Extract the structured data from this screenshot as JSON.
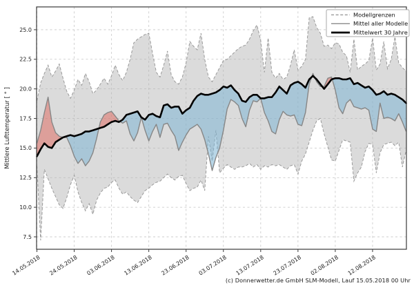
{
  "caption": "(c) Donnerwetter.de GmbH SLM-Modell, Lauf 15.05.2018 00 Uhr",
  "chart_data": {
    "type": "line",
    "title": "",
    "xlabel": "",
    "ylabel": "Mittlere Lufttemperatur [ ° ]",
    "grid": true,
    "legend_position": "upper right",
    "legend": [
      {
        "label": "Modellgrenzen",
        "style": "dashed",
        "color": "#a0a0a0"
      },
      {
        "label": "Mittel aller Modelle",
        "style": "solid",
        "color": "#8a8a8a"
      },
      {
        "label": "Mittelwert 30 Jahre",
        "style": "thick",
        "color": "#000000"
      }
    ],
    "x_tick_labels": [
      "14.05.2018",
      "24.05.2018",
      "03.06.2018",
      "13.06.2018",
      "23.06.2018",
      "03.07.2018",
      "13.07.2018",
      "23.07.2018",
      "02.08.2018",
      "12.08.2018"
    ],
    "x_tick_days": [
      0,
      10,
      20,
      30,
      40,
      50,
      60,
      70,
      80,
      90
    ],
    "y_ticks": [
      7.5,
      10.0,
      12.5,
      15.0,
      17.5,
      20.0,
      22.5,
      25.0
    ],
    "ylim": [
      6.45,
      26.9
    ],
    "days_total": 99,
    "colors": {
      "band_fill": "rgba(175,175,175,0.45)",
      "band_edge": "#999999",
      "above_fill": "rgba(222,110,100,0.55)",
      "below_fill": "rgba(125,180,212,0.55)",
      "mean_line": "#868686",
      "climate_line": "#000000",
      "grid_line": "#cccccc",
      "frame": "#3a3a3a",
      "tick_text": "#1a1a1a"
    },
    "series": [
      {
        "name": "model_upper_bound",
        "values": [
          19.0,
          20.5,
          21.3,
          22.0,
          21.0,
          21.5,
          22.1,
          20.9,
          19.8,
          19.2,
          19.9,
          20.8,
          20.3,
          21.3,
          20.6,
          19.6,
          19.9,
          20.4,
          20.9,
          20.4,
          21.1,
          22.0,
          21.2,
          20.7,
          21.4,
          22.5,
          23.9,
          24.2,
          24.4,
          24.6,
          24.7,
          23.0,
          21.4,
          21.0,
          22.0,
          23.2,
          21.2,
          20.6,
          20.4,
          21.0,
          22.2,
          24.0,
          23.6,
          23.3,
          24.7,
          22.5,
          21.0,
          20.6,
          21.2,
          21.8,
          22.4,
          22.5,
          22.8,
          23.1,
          23.4,
          23.6,
          23.7,
          24.2,
          24.9,
          25.4,
          24.1,
          21.4,
          24.3,
          21.4,
          20.9,
          21.3,
          20.8,
          21.0,
          22.0,
          23.3,
          21.6,
          21.9,
          22.5,
          26.0,
          26.1,
          25.2,
          24.7,
          23.6,
          23.7,
          23.4,
          23.9,
          23.8,
          23.1,
          22.8,
          21.4,
          24.2,
          21.6,
          21.9,
          22.1,
          22.4,
          24.3,
          21.6,
          22.1,
          24.0,
          21.7,
          22.5,
          24.4,
          22.2,
          21.8,
          21.5
        ]
      },
      {
        "name": "model_lower_bound",
        "values": [
          13.5,
          7.2,
          13.2,
          12.4,
          11.6,
          10.9,
          10.2,
          9.9,
          10.8,
          11.9,
          12.7,
          11.3,
          10.4,
          9.7,
          10.3,
          9.4,
          10.6,
          11.2,
          11.6,
          11.7,
          12.1,
          12.3,
          11.6,
          11.1,
          11.3,
          10.9,
          10.6,
          10.4,
          10.9,
          11.4,
          11.6,
          11.9,
          12.1,
          12.2,
          12.5,
          12.8,
          12.5,
          12.3,
          12.6,
          12.7,
          12.0,
          11.4,
          11.6,
          11.7,
          12.3,
          11.4,
          16.0,
          13.9,
          16.5,
          12.9,
          13.3,
          13.6,
          13.4,
          13.2,
          13.4,
          13.4,
          13.5,
          13.7,
          13.4,
          13.6,
          13.2,
          13.5,
          13.4,
          13.6,
          13.5,
          13.6,
          13.4,
          13.2,
          13.5,
          13.6,
          12.8,
          13.9,
          14.5,
          15.5,
          16.5,
          17.3,
          17.5,
          16.2,
          15.1,
          14.0,
          13.9,
          14.8,
          15.7,
          15.6,
          15.5,
          12.2,
          12.9,
          13.4,
          14.7,
          15.4,
          15.3,
          12.9,
          14.6,
          15.3,
          15.4,
          15.5,
          15.2,
          15.5,
          13.4,
          14.8
        ]
      },
      {
        "name": "model_mean",
        "values": [
          15.4,
          16.5,
          18.0,
          19.3,
          17.2,
          16.3,
          16.0,
          15.9,
          15.9,
          15.2,
          14.3,
          13.7,
          14.1,
          13.5,
          13.9,
          14.6,
          15.8,
          17.2,
          17.8,
          18.0,
          18.1,
          17.7,
          17.3,
          17.1,
          17.3,
          16.2,
          15.6,
          16.3,
          17.6,
          16.5,
          15.6,
          16.4,
          17.0,
          15.9,
          17.0,
          17.1,
          16.5,
          16.0,
          14.8,
          15.5,
          16.1,
          16.6,
          16.8,
          17.0,
          16.6,
          15.7,
          14.5,
          13.1,
          14.2,
          15.0,
          16.5,
          18.3,
          19.1,
          18.9,
          18.6,
          17.5,
          16.8,
          18.2,
          19.0,
          18.9,
          19.2,
          18.0,
          17.3,
          16.4,
          16.2,
          17.4,
          18.1,
          17.8,
          17.7,
          17.8,
          17.0,
          16.9,
          18.0,
          20.4,
          21.3,
          20.6,
          20.2,
          20.2,
          20.9,
          21.0,
          19.9,
          18.4,
          17.9,
          18.8,
          19.1,
          18.5,
          18.4,
          18.3,
          18.4,
          18.2,
          16.6,
          16.4,
          18.8,
          17.5,
          17.6,
          17.5,
          17.3,
          17.9,
          17.2,
          16.4
        ]
      },
      {
        "name": "climate_mean_30y",
        "values": [
          14.3,
          14.9,
          15.4,
          15.1,
          15.0,
          15.5,
          15.7,
          15.9,
          16.0,
          16.1,
          16.0,
          16.1,
          16.2,
          16.4,
          16.4,
          16.5,
          16.6,
          16.7,
          16.8,
          17.0,
          17.2,
          17.3,
          17.2,
          17.4,
          17.8,
          17.9,
          18.0,
          18.1,
          17.6,
          17.4,
          17.8,
          17.9,
          17.7,
          17.6,
          18.6,
          18.7,
          18.4,
          18.5,
          18.5,
          17.9,
          18.2,
          18.4,
          19.0,
          19.4,
          19.6,
          19.5,
          19.5,
          19.6,
          19.7,
          19.9,
          20.2,
          20.1,
          20.3,
          19.9,
          19.6,
          19.0,
          18.9,
          19.3,
          19.5,
          19.5,
          19.2,
          19.2,
          19.3,
          19.3,
          19.7,
          20.2,
          19.9,
          19.6,
          20.3,
          20.5,
          20.6,
          20.4,
          20.1,
          20.8,
          21.1,
          20.8,
          20.4,
          20.0,
          20.4,
          20.8,
          20.9,
          20.9,
          20.8,
          20.8,
          20.9,
          20.4,
          20.5,
          20.3,
          20.1,
          20.2,
          19.9,
          19.5,
          19.6,
          19.8,
          19.5,
          19.6,
          19.5,
          19.3,
          19.1,
          18.8
        ]
      }
    ]
  }
}
